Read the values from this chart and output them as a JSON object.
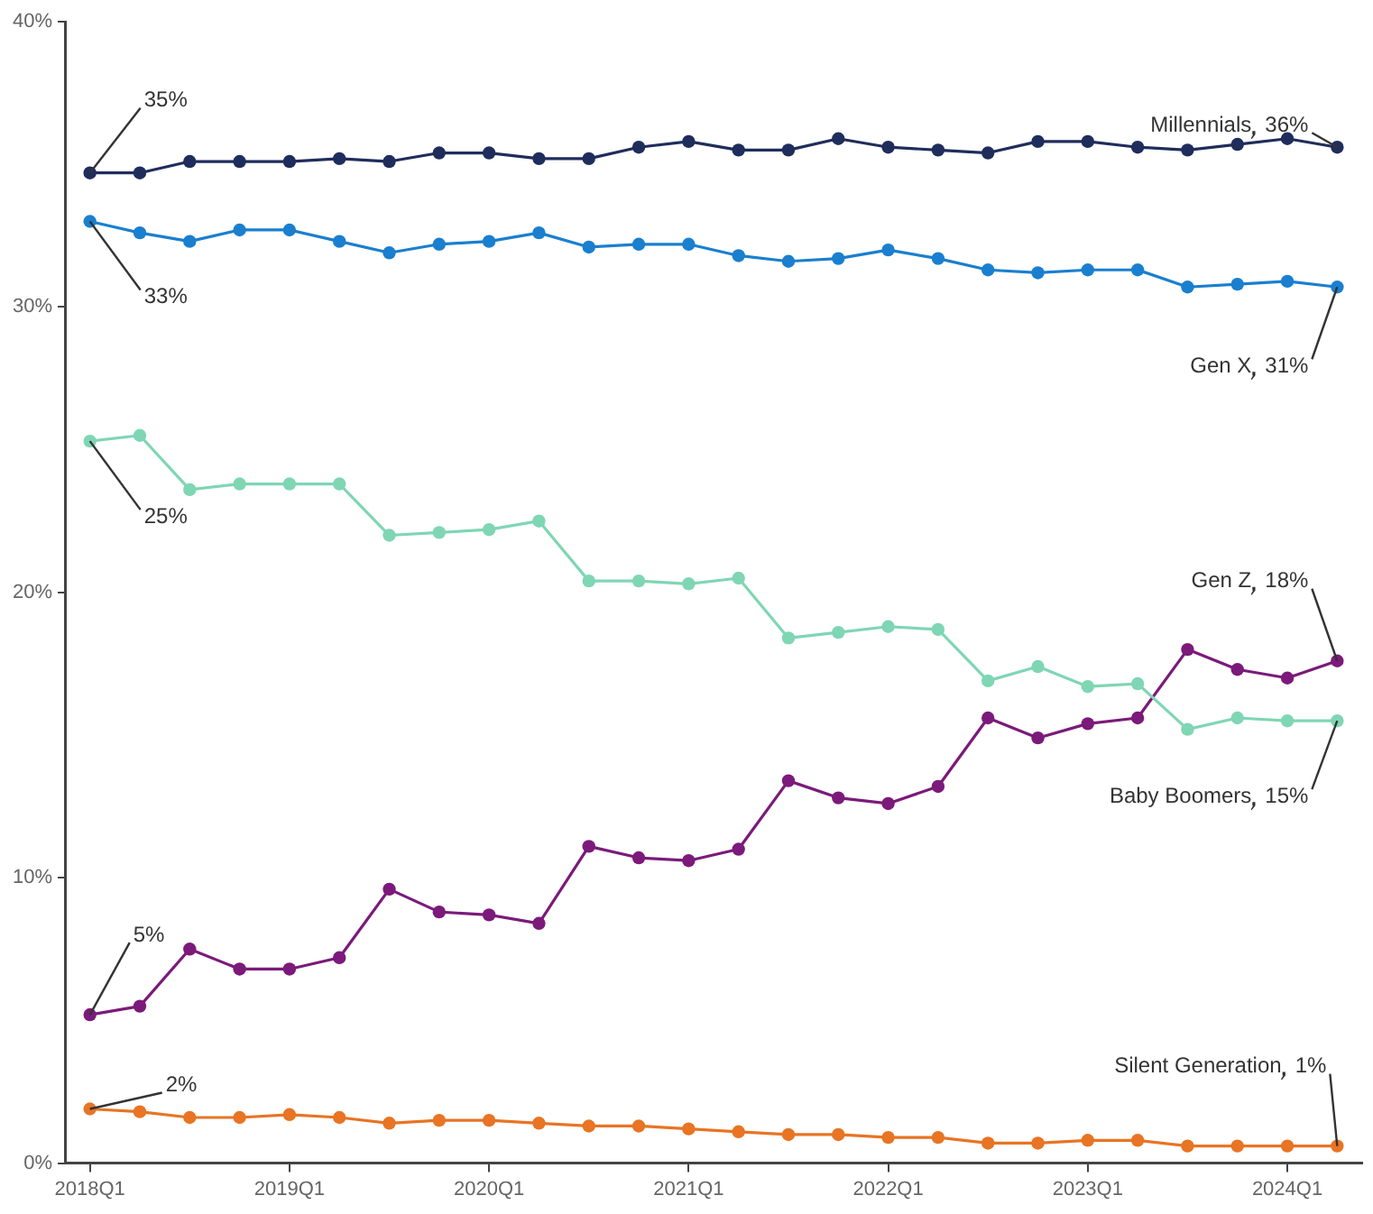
{
  "chart_data": {
    "type": "line",
    "categories": [
      "2018Q1",
      null,
      null,
      null,
      "2019Q1",
      null,
      null,
      null,
      "2020Q1",
      null,
      null,
      null,
      "2021Q1",
      null,
      null,
      null,
      "2022Q1",
      null,
      null,
      null,
      "2023Q1",
      null,
      null,
      null,
      "2024Q1",
      null
    ],
    "ylim": [
      0,
      40
    ],
    "yticks": [
      {
        "value": 0,
        "label": "0%"
      },
      {
        "value": 10,
        "label": "10%"
      },
      {
        "value": 20,
        "label": "20%"
      },
      {
        "value": 30,
        "label": "30%"
      },
      {
        "value": 40,
        "label": "40%"
      }
    ],
    "grid": false,
    "legend": false,
    "marker": "circle",
    "line_style": "solid",
    "series": [
      {
        "name": "Millennials",
        "color": "#1f2d5c",
        "values": [
          34.7,
          34.7,
          35.1,
          35.1,
          35.1,
          35.2,
          35.1,
          35.4,
          35.4,
          35.2,
          35.2,
          35.6,
          35.8,
          35.5,
          35.5,
          35.9,
          35.6,
          35.5,
          35.4,
          35.8,
          35.8,
          35.6,
          35.5,
          35.7,
          35.9,
          35.6
        ],
        "value_labels": [
          "35%",
          null,
          null,
          null,
          null,
          null,
          null,
          null,
          null,
          null,
          null,
          null,
          null,
          null,
          null,
          null,
          null,
          null,
          null,
          null,
          null,
          null,
          null,
          null,
          null,
          "36%"
        ]
      },
      {
        "name": "Gen X",
        "color": "#1a7fcf",
        "values": [
          33.0,
          32.6,
          32.3,
          32.7,
          32.7,
          32.3,
          31.9,
          32.2,
          32.3,
          32.6,
          32.1,
          32.2,
          32.2,
          31.8,
          31.6,
          31.7,
          32.0,
          31.7,
          31.3,
          31.2,
          31.3,
          31.3,
          30.7,
          30.8,
          30.9,
          30.7
        ],
        "value_labels": [
          "33%",
          null,
          null,
          null,
          null,
          null,
          null,
          null,
          null,
          null,
          null,
          null,
          null,
          null,
          null,
          null,
          null,
          null,
          null,
          null,
          null,
          null,
          null,
          null,
          null,
          "31%"
        ]
      },
      {
        "name": "Baby Boomers",
        "color": "#7fd6b4",
        "values": [
          25.3,
          25.5,
          23.6,
          23.8,
          23.8,
          23.8,
          22.0,
          22.1,
          22.2,
          22.5,
          20.4,
          20.4,
          20.3,
          20.5,
          18.4,
          18.6,
          18.8,
          18.7,
          16.9,
          17.4,
          16.7,
          16.8,
          15.2,
          15.6,
          15.5,
          15.5
        ],
        "value_labels": [
          "25%",
          null,
          null,
          null,
          null,
          null,
          null,
          null,
          null,
          null,
          null,
          null,
          null,
          null,
          null,
          null,
          null,
          null,
          null,
          null,
          null,
          null,
          null,
          null,
          null,
          "15%"
        ]
      },
      {
        "name": "Gen Z",
        "color": "#7b1a7a",
        "values": [
          5.2,
          5.5,
          7.5,
          6.8,
          6.8,
          7.2,
          9.6,
          8.8,
          8.7,
          8.4,
          11.1,
          10.7,
          10.6,
          11.0,
          13.4,
          12.8,
          12.6,
          13.2,
          15.6,
          14.9,
          15.4,
          15.6,
          18.0,
          17.3,
          17.0,
          17.6
        ],
        "value_labels": [
          "5%",
          null,
          null,
          null,
          null,
          null,
          null,
          null,
          null,
          null,
          null,
          null,
          null,
          null,
          null,
          null,
          null,
          null,
          null,
          null,
          null,
          null,
          null,
          null,
          null,
          "18%"
        ]
      },
      {
        "name": "Silent Generation",
        "color": "#e87424",
        "values": [
          1.9,
          1.8,
          1.6,
          1.6,
          1.7,
          1.6,
          1.4,
          1.5,
          1.5,
          1.4,
          1.3,
          1.3,
          1.2,
          1.1,
          1.0,
          1.0,
          0.9,
          0.9,
          0.7,
          0.7,
          0.8,
          0.8,
          0.6,
          0.6,
          0.6,
          0.6
        ],
        "value_labels": [
          "2%",
          null,
          null,
          null,
          null,
          null,
          null,
          null,
          null,
          null,
          null,
          null,
          null,
          null,
          null,
          null,
          null,
          null,
          null,
          null,
          null,
          null,
          null,
          null,
          null,
          "1%"
        ]
      }
    ]
  }
}
